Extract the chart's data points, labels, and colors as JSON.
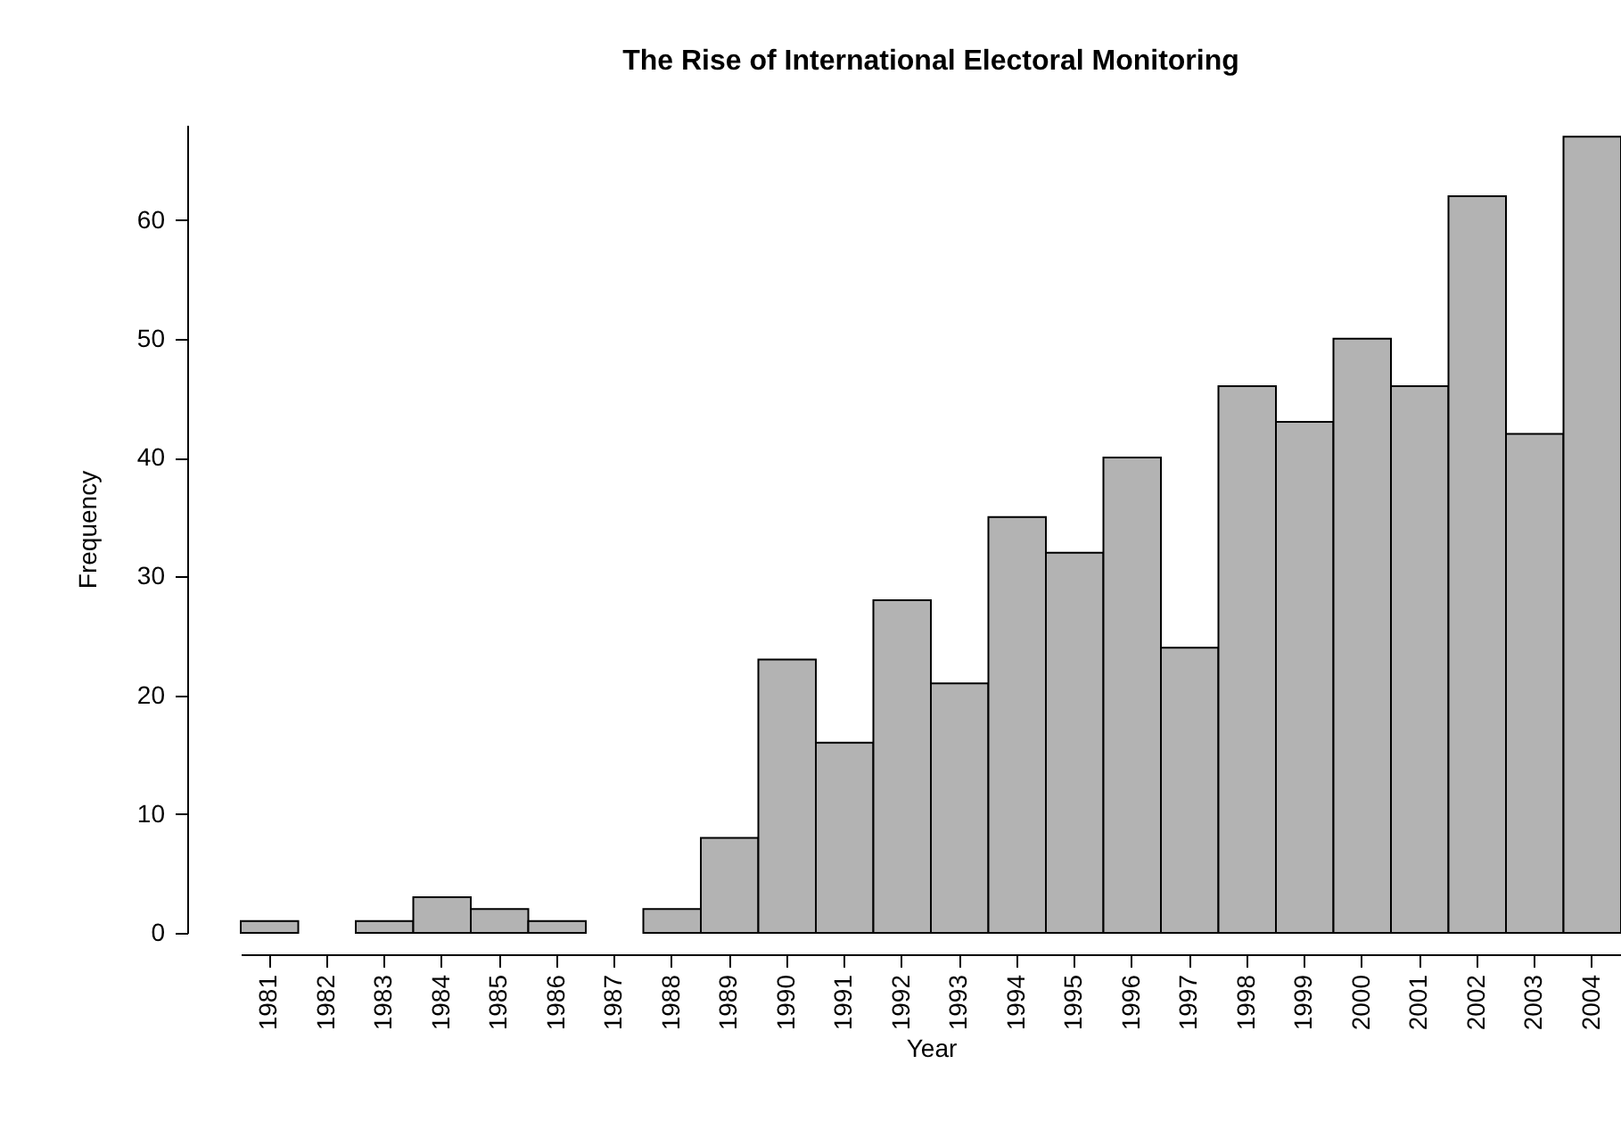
{
  "chart_data": {
    "type": "bar",
    "title": "The Rise of International Electoral Monitoring",
    "xlabel": "Year",
    "ylabel": "Frequency",
    "categories": [
      "1981",
      "1982",
      "1983",
      "1984",
      "1985",
      "1986",
      "1987",
      "1988",
      "1989",
      "1990",
      "1991",
      "1992",
      "1993",
      "1994",
      "1995",
      "1996",
      "1997",
      "1998",
      "1999",
      "2000",
      "2001",
      "2002",
      "2003",
      "2004"
    ],
    "values": [
      1,
      0,
      1,
      3,
      2,
      1,
      0,
      2,
      8,
      23,
      16,
      28,
      21,
      35,
      32,
      40,
      24,
      46,
      43,
      50,
      46,
      62,
      42,
      67
    ],
    "color": "#b3b3b3",
    "ylim": [
      0,
      68
    ],
    "yticks": [
      0,
      10,
      20,
      30,
      40,
      50,
      60
    ]
  }
}
